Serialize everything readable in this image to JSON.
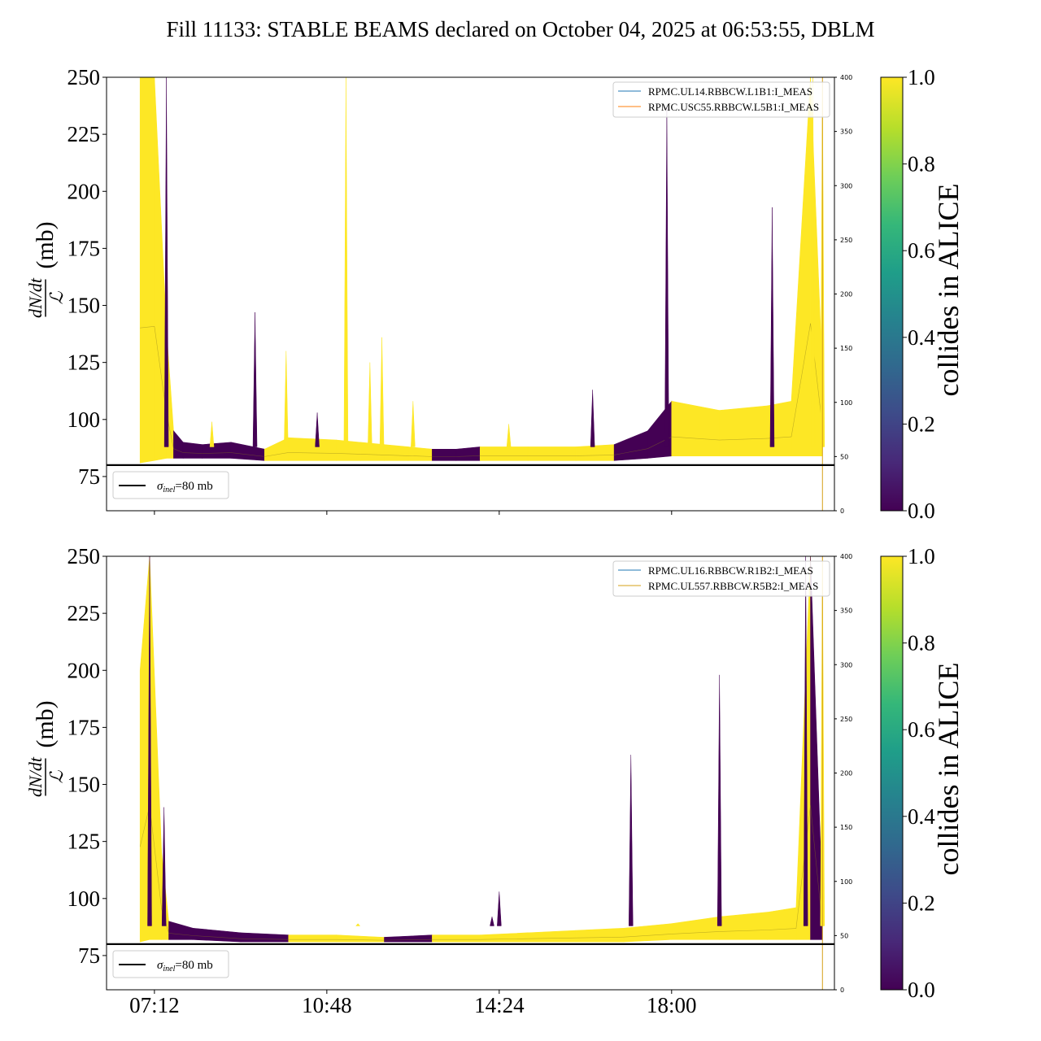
{
  "title": "Fill 11133: STABLE BEAMS declared on October 04, 2025 at 06:53:55, DBLM",
  "colors": {
    "viridis": [
      "#440154",
      "#482878",
      "#3e4a89",
      "#31688e",
      "#26828e",
      "#1f9e89",
      "#35b779",
      "#6ece58",
      "#b5de2b",
      "#fde725"
    ],
    "sigma_line": "#000000",
    "legend_blue": "#1f77b4",
    "legend_orange": "#ff7f0e",
    "legend_gold": "#d4a017"
  },
  "chart_data": [
    {
      "type": "area",
      "name": "top-panel",
      "ylabel": {
        "numerator": "dN/dt",
        "denominator": "ℒ",
        "unit": "(mb)"
      },
      "ylim": [
        60,
        250
      ],
      "yticks": [
        75,
        100,
        125,
        150,
        175,
        200,
        225,
        250
      ],
      "y2lim": [
        0,
        400
      ],
      "y2ticks": [
        0,
        50,
        100,
        150,
        200,
        250,
        300,
        350,
        400
      ],
      "xticks": [
        "07:12",
        "10:48",
        "14:24",
        "18:00"
      ],
      "xticks_shown": false,
      "x_unit": "hours since 00:00, October 04, 2025",
      "xlim": [
        6.2,
        21.4
      ],
      "sigma_inel": {
        "value": 80,
        "label": "=80 mb",
        "symbol": "σ",
        "subscript": "inel"
      },
      "legend": {
        "position": "top-right",
        "entries": [
          {
            "label": "RPMC.UL14.RBBCW.L1B1:I_MEAS",
            "color": "#1f77b4"
          },
          {
            "label": "RPMC.USC55.RBBCW.L5B1:I_MEAS",
            "color": "#ff7f0e"
          }
        ]
      },
      "band": [
        {
          "x": 6.9,
          "low": 81,
          "high": 250,
          "c": 1.0
        },
        {
          "x": 7.2,
          "low": 82,
          "high": 250,
          "c": 1.0
        },
        {
          "x": 7.45,
          "low": 83,
          "high": 140,
          "c": 1.0
        },
        {
          "x": 7.6,
          "low": 83,
          "high": 95,
          "c": 0.0
        },
        {
          "x": 7.8,
          "low": 83,
          "high": 90,
          "c": 0.0
        },
        {
          "x": 8.2,
          "low": 83,
          "high": 89,
          "c": 0.0
        },
        {
          "x": 8.8,
          "low": 83,
          "high": 90,
          "c": 0.0
        },
        {
          "x": 9.5,
          "low": 82,
          "high": 87,
          "c": 1.0
        },
        {
          "x": 10.0,
          "low": 82,
          "high": 92,
          "c": 1.0
        },
        {
          "x": 11.0,
          "low": 82,
          "high": 91,
          "c": 1.0
        },
        {
          "x": 11.5,
          "low": 82,
          "high": 90,
          "c": 1.0
        },
        {
          "x": 12.0,
          "low": 82,
          "high": 89,
          "c": 1.0
        },
        {
          "x": 12.5,
          "low": 82,
          "high": 88,
          "c": 1.0
        },
        {
          "x": 13.0,
          "low": 82,
          "high": 87,
          "c": 0.0
        },
        {
          "x": 13.5,
          "low": 82,
          "high": 87,
          "c": 0.0
        },
        {
          "x": 14.0,
          "low": 82,
          "high": 88,
          "c": 1.0
        },
        {
          "x": 15.0,
          "low": 82,
          "high": 88,
          "c": 1.0
        },
        {
          "x": 16.0,
          "low": 82,
          "high": 88,
          "c": 1.0
        },
        {
          "x": 16.8,
          "low": 82,
          "high": 89,
          "c": 0.0
        },
        {
          "x": 17.5,
          "low": 83,
          "high": 95,
          "c": 0.0
        },
        {
          "x": 18.0,
          "low": 84,
          "high": 108,
          "c": 1.0
        },
        {
          "x": 19.0,
          "low": 84,
          "high": 104,
          "c": 1.0
        },
        {
          "x": 20.0,
          "low": 84,
          "high": 106,
          "c": 1.0
        },
        {
          "x": 20.5,
          "low": 84,
          "high": 108,
          "c": 1.0
        },
        {
          "x": 20.9,
          "low": 84,
          "high": 250,
          "c": 1.0
        },
        {
          "x": 21.15,
          "low": 84,
          "high": 120,
          "c": 1.0
        }
      ],
      "spikes": [
        {
          "x": 7.45,
          "peak": 250,
          "c": 0.0
        },
        {
          "x": 8.4,
          "peak": 99,
          "c": 1.0
        },
        {
          "x": 9.3,
          "peak": 147,
          "c": 0.0
        },
        {
          "x": 9.95,
          "peak": 130,
          "c": 1.0
        },
        {
          "x": 10.6,
          "peak": 103,
          "c": 0.0
        },
        {
          "x": 11.2,
          "peak": 250,
          "c": 1.0
        },
        {
          "x": 11.7,
          "peak": 125,
          "c": 1.0
        },
        {
          "x": 11.95,
          "peak": 136,
          "c": 1.0
        },
        {
          "x": 12.6,
          "peak": 108,
          "c": 1.0
        },
        {
          "x": 14.6,
          "peak": 98,
          "c": 1.0
        },
        {
          "x": 16.35,
          "peak": 113,
          "c": 0.0
        },
        {
          "x": 17.9,
          "peak": 237,
          "c": 0.0
        },
        {
          "x": 20.1,
          "peak": 193,
          "c": 0.0
        },
        {
          "x": 20.95,
          "peak": 250,
          "c": 1.0
        },
        {
          "x": 21.15,
          "peak": 250,
          "c": 1.0
        }
      ],
      "vlines": [
        {
          "x": 21.15,
          "color": "#d4a017"
        }
      ]
    },
    {
      "type": "area",
      "name": "bottom-panel",
      "ylabel": {
        "numerator": "dN/dt",
        "denominator": "ℒ",
        "unit": "(mb)"
      },
      "ylim": [
        60,
        250
      ],
      "yticks": [
        75,
        100,
        125,
        150,
        175,
        200,
        225,
        250
      ],
      "y2lim": [
        0,
        400
      ],
      "y2ticks": [
        0,
        50,
        100,
        150,
        200,
        250,
        300,
        350,
        400
      ],
      "xticks": [
        "07:12",
        "10:48",
        "14:24",
        "18:00"
      ],
      "xticks_shown": true,
      "x_unit": "hours since 00:00, October 04, 2025",
      "xlim": [
        6.2,
        21.4
      ],
      "sigma_inel": {
        "value": 80,
        "label": "=80 mb",
        "symbol": "σ",
        "subscript": "inel"
      },
      "legend": {
        "position": "top-right",
        "entries": [
          {
            "label": "RPMC.UL16.RBBCW.R1B2:I_MEAS",
            "color": "#1f77b4"
          },
          {
            "label": "RPMC.UL557.RBBCW.R5B2:I_MEAS",
            "color": "#d4a017"
          }
        ]
      },
      "band": [
        {
          "x": 6.9,
          "low": 81,
          "high": 200,
          "c": 1.0
        },
        {
          "x": 7.1,
          "low": 82,
          "high": 250,
          "c": 1.0
        },
        {
          "x": 7.35,
          "low": 82,
          "high": 120,
          "c": 1.0
        },
        {
          "x": 7.5,
          "low": 82,
          "high": 90,
          "c": 0.0
        },
        {
          "x": 8.0,
          "low": 82,
          "high": 87,
          "c": 0.0
        },
        {
          "x": 9.0,
          "low": 81,
          "high": 85,
          "c": 0.0
        },
        {
          "x": 10.0,
          "low": 81,
          "high": 84,
          "c": 1.0
        },
        {
          "x": 11.0,
          "low": 81,
          "high": 84,
          "c": 1.0
        },
        {
          "x": 12.0,
          "low": 81,
          "high": 83,
          "c": 0.0
        },
        {
          "x": 13.0,
          "low": 81,
          "high": 84,
          "c": 1.0
        },
        {
          "x": 14.0,
          "low": 81,
          "high": 84,
          "c": 1.0
        },
        {
          "x": 15.0,
          "low": 81,
          "high": 85,
          "c": 1.0
        },
        {
          "x": 16.0,
          "low": 81,
          "high": 86,
          "c": 1.0
        },
        {
          "x": 17.0,
          "low": 81,
          "high": 87,
          "c": 1.0
        },
        {
          "x": 18.0,
          "low": 82,
          "high": 89,
          "c": 1.0
        },
        {
          "x": 19.0,
          "low": 82,
          "high": 92,
          "c": 1.0
        },
        {
          "x": 20.0,
          "low": 82,
          "high": 94,
          "c": 1.0
        },
        {
          "x": 20.6,
          "low": 82,
          "high": 96,
          "c": 1.0
        },
        {
          "x": 20.9,
          "low": 82,
          "high": 250,
          "c": 0.0
        },
        {
          "x": 21.15,
          "low": 82,
          "high": 98,
          "c": 1.0
        }
      ],
      "spikes": [
        {
          "x": 7.1,
          "peak": 250,
          "c": 0.0
        },
        {
          "x": 7.4,
          "peak": 140,
          "c": 0.0
        },
        {
          "x": 11.45,
          "peak": 89,
          "c": 1.0
        },
        {
          "x": 14.25,
          "peak": 92,
          "c": 0.0
        },
        {
          "x": 14.4,
          "peak": 103,
          "c": 0.0
        },
        {
          "x": 17.15,
          "peak": 163,
          "c": 0.0
        },
        {
          "x": 19.0,
          "peak": 198,
          "c": 0.0
        },
        {
          "x": 20.8,
          "peak": 250,
          "c": 0.0
        },
        {
          "x": 21.15,
          "peak": 250,
          "c": 1.0
        }
      ],
      "vlines": [
        {
          "x": 21.15,
          "color": "#d4a017"
        }
      ]
    }
  ],
  "colorbar": {
    "label": "collides in ALICE",
    "range": [
      0.0,
      1.0
    ],
    "ticks": [
      "0.0",
      "0.2",
      "0.4",
      "0.6",
      "0.8",
      "1.0"
    ]
  }
}
